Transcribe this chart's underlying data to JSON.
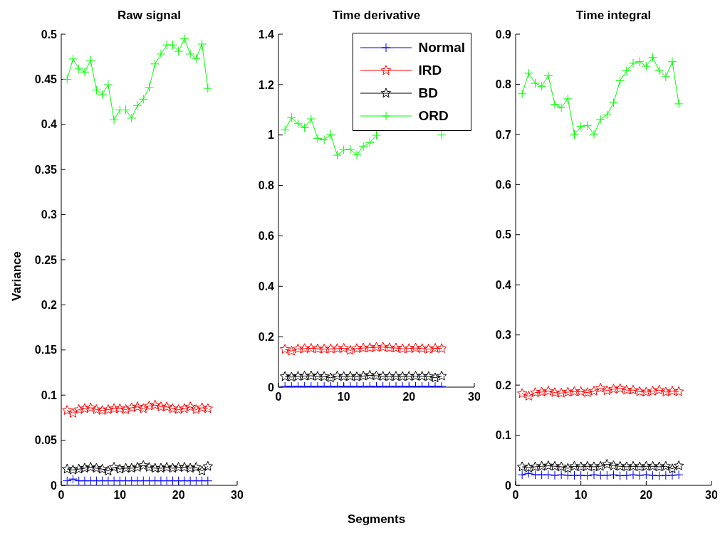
{
  "chart_data": [
    {
      "type": "line",
      "title": "Raw signal",
      "ylabel": "Variance",
      "x": [
        1,
        2,
        3,
        4,
        5,
        6,
        7,
        8,
        9,
        10,
        11,
        12,
        13,
        14,
        15,
        16,
        17,
        18,
        19,
        20,
        21,
        22,
        23,
        24,
        25
      ],
      "xlim": [
        0,
        30
      ],
      "xticks": [
        0,
        10,
        20,
        30
      ],
      "ylim": [
        0,
        0.5
      ],
      "yticks": [
        0,
        0.05,
        0.1,
        0.15,
        0.2,
        0.25,
        0.3,
        0.35,
        0.4,
        0.45,
        0.5
      ],
      "legend": false,
      "series": [
        {
          "color": "#0000ff",
          "marker": "cross",
          "values": [
            0.005,
            0.007,
            0.005,
            0.005,
            0.005,
            0.005,
            0.005,
            0.005,
            0.005,
            0.005,
            0.005,
            0.005,
            0.005,
            0.005,
            0.005,
            0.005,
            0.005,
            0.005,
            0.005,
            0.005,
            0.005,
            0.005,
            0.005,
            0.005,
            0.005
          ]
        },
        {
          "color": "#ff0000",
          "marker": "star",
          "values": [
            0.083,
            0.08,
            0.084,
            0.085,
            0.086,
            0.084,
            0.083,
            0.084,
            0.085,
            0.085,
            0.084,
            0.086,
            0.087,
            0.085,
            0.088,
            0.089,
            0.087,
            0.087,
            0.085,
            0.084,
            0.085,
            0.087,
            0.084,
            0.086,
            0.085
          ]
        },
        {
          "color": "#000000",
          "marker": "star",
          "values": [
            0.018,
            0.017,
            0.018,
            0.019,
            0.02,
            0.019,
            0.018,
            0.016,
            0.02,
            0.018,
            0.019,
            0.019,
            0.02,
            0.022,
            0.02,
            0.019,
            0.019,
            0.02,
            0.019,
            0.02,
            0.02,
            0.019,
            0.02,
            0.016,
            0.021
          ]
        },
        {
          "color": "#00ff00",
          "marker": "cross",
          "values": [
            0.45,
            0.4725,
            0.4615,
            0.458,
            0.471,
            0.438,
            0.433,
            0.444,
            0.405,
            0.416,
            0.416,
            0.407,
            0.421,
            0.428,
            0.441,
            0.467,
            0.478,
            0.488,
            0.488,
            0.481,
            0.495,
            0.478,
            0.473,
            0.489,
            0.44
          ]
        }
      ]
    },
    {
      "type": "line",
      "title": "Time derivative",
      "xlabel": "Segments",
      "x": [
        1,
        2,
        3,
        4,
        5,
        6,
        7,
        8,
        9,
        10,
        11,
        12,
        13,
        14,
        15,
        16,
        17,
        18,
        19,
        20,
        21,
        22,
        23,
        24,
        25
      ],
      "xlim": [
        0,
        30
      ],
      "xticks": [
        0,
        10,
        20,
        30
      ],
      "ylim": [
        0,
        1.4
      ],
      "yticks": [
        0,
        0.2,
        0.4,
        0.6,
        0.8,
        1,
        1.2,
        1.4
      ],
      "legend": "top right",
      "series": [
        {
          "name": "Normal",
          "color": "#0000ff",
          "marker": "cross",
          "values": [
            0.003,
            0.003,
            0.003,
            0.003,
            0.003,
            0.003,
            0.003,
            0.003,
            0.003,
            0.003,
            0.003,
            0.003,
            0.003,
            0.003,
            0.003,
            0.003,
            0.003,
            0.003,
            0.003,
            0.003,
            0.003,
            0.003,
            0.003,
            0.003,
            0.003
          ]
        },
        {
          "name": "IRD",
          "color": "#ff0000",
          "marker": "star",
          "values": [
            0.15,
            0.143,
            0.152,
            0.153,
            0.154,
            0.152,
            0.151,
            0.152,
            0.153,
            0.154,
            0.146,
            0.153,
            0.155,
            0.156,
            0.158,
            0.159,
            0.156,
            0.155,
            0.152,
            0.153,
            0.155,
            0.153,
            0.151,
            0.154,
            0.153
          ]
        },
        {
          "name": "BD",
          "color": "#000000",
          "marker": "star",
          "values": [
            0.042,
            0.04,
            0.043,
            0.044,
            0.045,
            0.043,
            0.042,
            0.037,
            0.044,
            0.042,
            0.043,
            0.041,
            0.044,
            0.047,
            0.045,
            0.043,
            0.042,
            0.043,
            0.042,
            0.043,
            0.044,
            0.043,
            0.042,
            0.037,
            0.044
          ]
        },
        {
          "name": "ORD",
          "color": "#00ff00",
          "marker": "cross",
          "values": [
            1.02,
            1.069,
            1.045,
            1.029,
            1.064,
            0.986,
            0.981,
            1.002,
            0.92,
            0.941,
            0.943,
            0.921,
            0.955,
            0.97,
            0.999,
            null,
            null,
            null,
            null,
            null,
            null,
            null,
            null,
            null,
            1.0
          ]
        }
      ]
    },
    {
      "type": "line",
      "title": "Time integral",
      "x": [
        1,
        2,
        3,
        4,
        5,
        6,
        7,
        8,
        9,
        10,
        11,
        12,
        13,
        14,
        15,
        16,
        17,
        18,
        19,
        20,
        21,
        22,
        23,
        24,
        25
      ],
      "xlim": [
        0,
        30
      ],
      "xticks": [
        0,
        10,
        20,
        30
      ],
      "ylim": [
        0,
        0.9
      ],
      "yticks": [
        0,
        0.1,
        0.2,
        0.3,
        0.4,
        0.5,
        0.6,
        0.7,
        0.8,
        0.9
      ],
      "legend": false,
      "series": [
        {
          "color": "#0000ff",
          "marker": "cross",
          "values": [
            0.021,
            0.024,
            0.021,
            0.021,
            0.021,
            0.02,
            0.021,
            0.02,
            0.02,
            0.02,
            0.019,
            0.021,
            0.02,
            0.02,
            0.021,
            0.019,
            0.02,
            0.021,
            0.02,
            0.021,
            0.02,
            0.019,
            0.02,
            0.02,
            0.021
          ]
        },
        {
          "color": "#ff0000",
          "marker": "star",
          "values": [
            0.183,
            0.178,
            0.185,
            0.186,
            0.188,
            0.185,
            0.184,
            0.186,
            0.187,
            0.187,
            0.185,
            0.188,
            0.194,
            0.189,
            0.192,
            0.193,
            0.19,
            0.19,
            0.187,
            0.186,
            0.188,
            0.19,
            0.186,
            0.188,
            0.187
          ]
        },
        {
          "color": "#000000",
          "marker": "star",
          "values": [
            0.037,
            0.035,
            0.037,
            0.038,
            0.039,
            0.038,
            0.037,
            0.034,
            0.038,
            0.037,
            0.038,
            0.037,
            0.038,
            0.042,
            0.039,
            0.038,
            0.037,
            0.038,
            0.037,
            0.038,
            0.038,
            0.037,
            0.038,
            0.033,
            0.039
          ]
        },
        {
          "color": "#00ff00",
          "marker": "cross",
          "values": [
            0.781,
            0.822,
            0.802,
            0.796,
            0.817,
            0.76,
            0.753,
            0.771,
            0.7,
            0.716,
            0.718,
            0.7,
            0.73,
            0.739,
            0.763,
            0.807,
            0.827,
            0.842,
            0.845,
            0.836,
            0.854,
            0.827,
            0.815,
            0.845,
            0.761
          ]
        }
      ]
    }
  ]
}
